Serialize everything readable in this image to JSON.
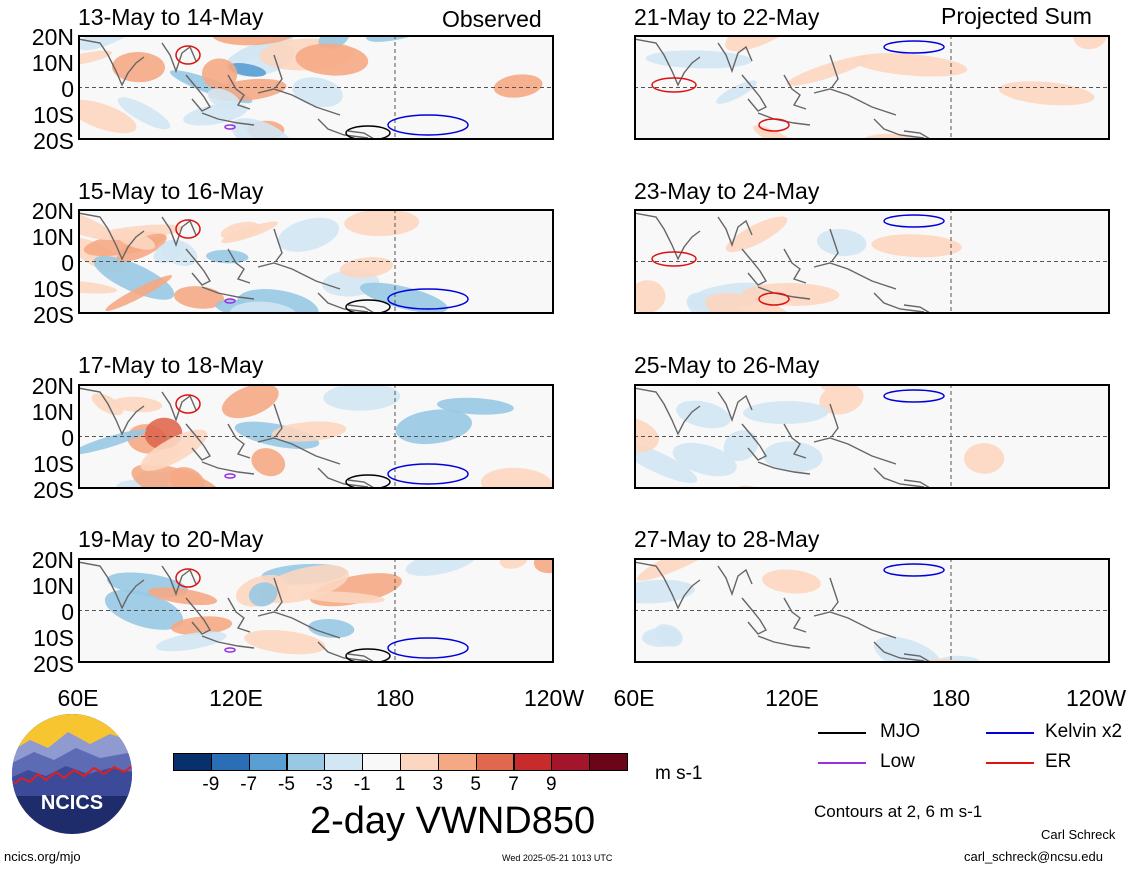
{
  "headers": {
    "observed": "Observed",
    "projected": "Projected Sum"
  },
  "lat_labels": [
    "20N",
    "10N",
    "0",
    "10S",
    "20S"
  ],
  "lon_labels": [
    "60E",
    "120E",
    "180",
    "120W"
  ],
  "panels": [
    {
      "title": "13-May to 14-May",
      "column": "observed"
    },
    {
      "title": "15-May to 16-May",
      "column": "observed"
    },
    {
      "title": "17-May to 18-May",
      "column": "observed"
    },
    {
      "title": "19-May to 20-May",
      "column": "observed"
    },
    {
      "title": "21-May to 22-May",
      "column": "projected"
    },
    {
      "title": "23-May to 24-May",
      "column": "projected"
    },
    {
      "title": "25-May to 26-May",
      "column": "projected"
    },
    {
      "title": "27-May to 28-May",
      "column": "projected"
    }
  ],
  "colorbar": {
    "colors": [
      "#08306b",
      "#2a6fb5",
      "#5a9fd3",
      "#98c8e3",
      "#d2e6f3",
      "#f8f8f8",
      "#fcd6c0",
      "#f5a884",
      "#e0684f",
      "#c72b2b",
      "#a3152a",
      "#6b0518"
    ],
    "tick_labels": [
      "-9",
      "-7",
      "-5",
      "-3",
      "-1",
      "1",
      "3",
      "5",
      "7",
      "9"
    ],
    "units": "m s-1"
  },
  "main_title": "2-day VWND850",
  "legend": [
    {
      "label": "MJO",
      "color": "#000000"
    },
    {
      "label": "Kelvin x2",
      "color": "#0000dd"
    },
    {
      "label": "Low",
      "color": "#9a30e0"
    },
    {
      "label": "ER",
      "color": "#dd1111"
    }
  ],
  "contour_note": "Contours at 2, 6 m s-1",
  "logo_text": "NCICS",
  "footer": {
    "left": "ncics.org/mjo",
    "center": "Wed 2025-05-21 1013 UTC",
    "author": "Carl Schreck",
    "email": "carl_schreck@ncsu.edu"
  }
}
